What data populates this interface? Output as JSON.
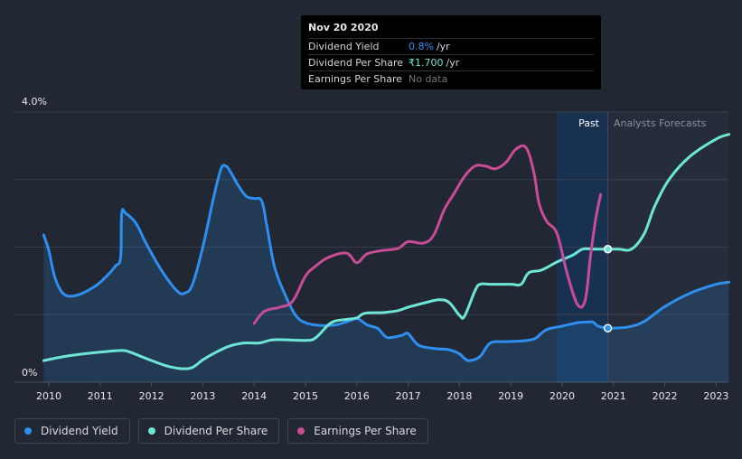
{
  "tooltip": {
    "date": "Nov 20 2020",
    "rows": [
      {
        "label": "Dividend Yield",
        "value": "0.8%",
        "unit": "/yr"
      },
      {
        "label": "Dividend Per Share",
        "value": "₹1.700",
        "unit": "/yr"
      },
      {
        "label": "Earnings Per Share",
        "value": "No data",
        "unit": ""
      }
    ]
  },
  "legend": [
    {
      "label": "Dividend Yield",
      "color": "#2d8ff0"
    },
    {
      "label": "Dividend Per Share",
      "color": "#6ee6d6"
    },
    {
      "label": "Earnings Per Share",
      "color": "#c84c96"
    }
  ],
  "section_labels": {
    "past": "Past",
    "forecast": "Analysts Forecasts"
  },
  "chart_data": {
    "type": "line",
    "title": "",
    "y_axis_labels": [
      "4.0%",
      "0%"
    ],
    "ylim": [
      0,
      4.0
    ],
    "xlim": [
      2009.7,
      2023.3
    ],
    "x_ticks": [
      "2010",
      "2011",
      "2012",
      "2013",
      "2014",
      "2015",
      "2016",
      "2017",
      "2018",
      "2019",
      "2020",
      "2021",
      "2022",
      "2023"
    ],
    "highlight_date": 2020.89,
    "past_band": [
      2019.9,
      2020.89
    ],
    "series": [
      {
        "name": "Dividend Yield",
        "color": "#2d8ff0",
        "filled": true,
        "x": [
          2009.9,
          2010.0,
          2010.1,
          2010.2,
          2010.35,
          2010.6,
          2010.9,
          2011.1,
          2011.3,
          2011.4,
          2011.42,
          2011.5,
          2011.7,
          2011.9,
          2012.2,
          2012.5,
          2012.65,
          2012.8,
          2013.0,
          2013.2,
          2013.35,
          2013.45,
          2013.55,
          2013.7,
          2013.85,
          2014.0,
          2014.15,
          2014.25,
          2014.4,
          2014.6,
          2014.8,
          2015.0,
          2015.3,
          2015.6,
          2015.9,
          2016.0,
          2016.2,
          2016.4,
          2016.5,
          2016.6,
          2016.8,
          2016.9,
          2017.0,
          2017.2,
          2017.5,
          2017.8,
          2018.0,
          2018.1,
          2018.2,
          2018.4,
          2018.6,
          2018.9,
          2019.2,
          2019.4,
          2019.5,
          2019.7,
          2020.0,
          2020.3,
          2020.5,
          2020.6,
          2020.7,
          2020.89,
          2021.0,
          2021.3,
          2021.6,
          2022.0,
          2022.5,
          2023.0,
          2023.25
        ],
        "values": [
          2.18,
          1.95,
          1.6,
          1.4,
          1.28,
          1.3,
          1.42,
          1.55,
          1.72,
          1.85,
          2.5,
          2.5,
          2.35,
          2.05,
          1.65,
          1.35,
          1.32,
          1.45,
          2.0,
          2.7,
          3.15,
          3.2,
          3.1,
          2.9,
          2.75,
          2.72,
          2.68,
          2.3,
          1.7,
          1.3,
          1.0,
          0.88,
          0.84,
          0.85,
          0.92,
          0.95,
          0.85,
          0.8,
          0.72,
          0.66,
          0.68,
          0.7,
          0.72,
          0.55,
          0.5,
          0.48,
          0.42,
          0.35,
          0.32,
          0.38,
          0.58,
          0.6,
          0.61,
          0.63,
          0.66,
          0.78,
          0.83,
          0.88,
          0.89,
          0.89,
          0.83,
          0.8,
          0.8,
          0.82,
          0.9,
          1.12,
          1.32,
          1.45,
          1.48
        ]
      },
      {
        "name": "Dividend Per Share",
        "color": "#6ee6d6",
        "filled": false,
        "x": [
          2009.9,
          2010.3,
          2010.8,
          2011.2,
          2011.45,
          2011.6,
          2011.9,
          2012.3,
          2012.6,
          2012.8,
          2013.0,
          2013.2,
          2013.5,
          2013.8,
          2014.1,
          2014.3,
          2014.5,
          2015.0,
          2015.2,
          2015.5,
          2015.8,
          2016.0,
          2016.15,
          2016.5,
          2016.8,
          2017.0,
          2017.3,
          2017.6,
          2017.8,
          2018.0,
          2018.1,
          2018.3,
          2018.4,
          2018.6,
          2019.0,
          2019.2,
          2019.35,
          2019.6,
          2019.9,
          2020.2,
          2020.4,
          2020.6,
          2020.89,
          2021.1,
          2021.35,
          2021.6,
          2021.8,
          2022.1,
          2022.5,
          2023.0,
          2023.25
        ],
        "values": [
          0.32,
          0.38,
          0.43,
          0.46,
          0.47,
          0.44,
          0.35,
          0.24,
          0.2,
          0.22,
          0.33,
          0.42,
          0.53,
          0.58,
          0.58,
          0.62,
          0.63,
          0.62,
          0.66,
          0.88,
          0.93,
          0.95,
          1.02,
          1.03,
          1.06,
          1.11,
          1.17,
          1.22,
          1.18,
          0.99,
          0.98,
          1.35,
          1.45,
          1.45,
          1.45,
          1.45,
          1.62,
          1.66,
          1.78,
          1.88,
          1.97,
          1.97,
          1.97,
          1.97,
          1.97,
          2.2,
          2.6,
          3.02,
          3.35,
          3.6,
          3.67
        ]
      },
      {
        "name": "Earnings Per Share",
        "color": "#c84c96",
        "filled": false,
        "x": [
          2014.0,
          2014.2,
          2014.5,
          2014.75,
          2015.0,
          2015.2,
          2015.45,
          2015.8,
          2016.0,
          2016.2,
          2016.5,
          2016.8,
          2017.0,
          2017.3,
          2017.5,
          2017.7,
          2017.9,
          2018.1,
          2018.3,
          2018.5,
          2018.7,
          2018.9,
          2019.1,
          2019.3,
          2019.45,
          2019.55,
          2019.7,
          2019.9,
          2020.1,
          2020.3,
          2020.45,
          2020.55,
          2020.65,
          2020.75
        ],
        "values": [
          0.87,
          1.05,
          1.11,
          1.2,
          1.57,
          1.72,
          1.85,
          1.91,
          1.77,
          1.9,
          1.95,
          1.98,
          2.08,
          2.06,
          2.18,
          2.55,
          2.8,
          3.05,
          3.2,
          3.2,
          3.16,
          3.25,
          3.45,
          3.47,
          3.1,
          2.65,
          2.38,
          2.2,
          1.6,
          1.15,
          1.22,
          1.85,
          2.4,
          2.78
        ]
      }
    ]
  }
}
